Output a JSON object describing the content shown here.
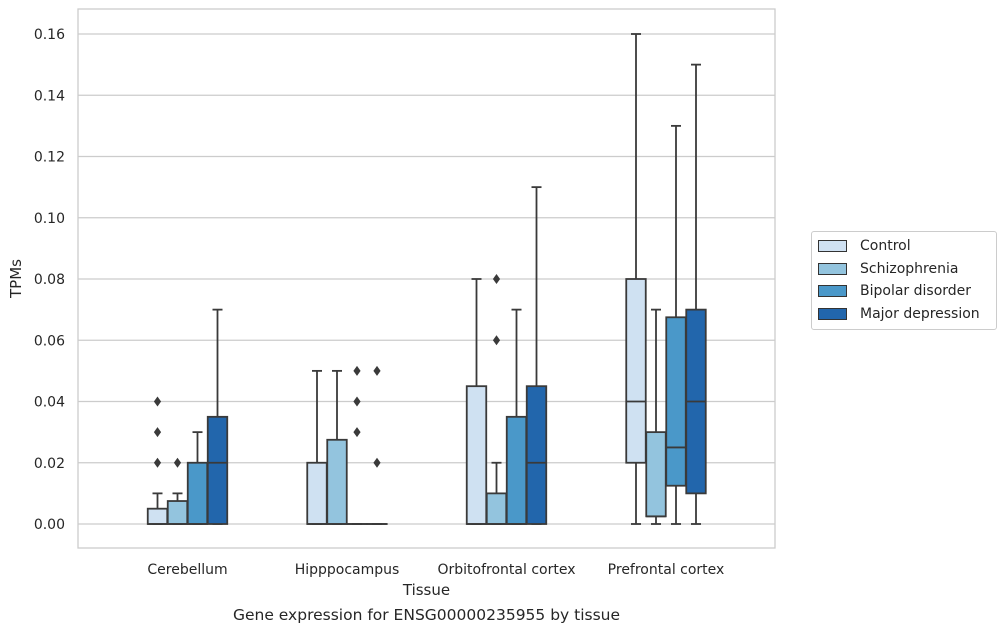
{
  "chart_data": {
    "type": "box",
    "title": "",
    "caption": "Gene expression for ENSG00000235955 by tissue",
    "xlabel": "Tissue",
    "ylabel": "TPMs",
    "ylim": [
      -0.008,
      0.168
    ],
    "yticks": [
      "0.00",
      "0.02",
      "0.04",
      "0.06",
      "0.08",
      "0.10",
      "0.12",
      "0.14",
      "0.16"
    ],
    "ytick_values": [
      0,
      0.02,
      0.04,
      0.06,
      0.08,
      0.1,
      0.12,
      0.14,
      0.16
    ],
    "grid": "horizontal",
    "legend_position": "outside-right",
    "categories": [
      "Cerebellum",
      "Hipppocampus",
      "Orbitofrontal cortex",
      "Prefrontal cortex"
    ],
    "series": [
      {
        "name": "Control",
        "color": "#cfe1f2",
        "boxes": [
          {
            "whislo": 0,
            "q1": 0,
            "med": 0,
            "q3": 0.005,
            "whishi": 0.01,
            "fliers": [
              0.02,
              0.03,
              0.04
            ]
          },
          {
            "whislo": 0,
            "q1": 0,
            "med": 0,
            "q3": 0.02,
            "whishi": 0.05,
            "fliers": []
          },
          {
            "whislo": 0,
            "q1": 0,
            "med": 0,
            "q3": 0.045,
            "whishi": 0.08,
            "fliers": []
          },
          {
            "whislo": 0,
            "q1": 0.02,
            "med": 0.04,
            "q3": 0.08,
            "whishi": 0.16,
            "fliers": []
          }
        ]
      },
      {
        "name": "Schizophrenia",
        "color": "#93c4de",
        "boxes": [
          {
            "whislo": 0,
            "q1": 0,
            "med": 0,
            "q3": 0.0075,
            "whishi": 0.01,
            "fliers": [
              0.02
            ]
          },
          {
            "whislo": 0,
            "q1": 0,
            "med": 0,
            "q3": 0.0275,
            "whishi": 0.05,
            "fliers": []
          },
          {
            "whislo": 0,
            "q1": 0,
            "med": 0,
            "q3": 0.01,
            "whishi": 0.02,
            "fliers": [
              0.06,
              0.08
            ]
          },
          {
            "whislo": 0,
            "q1": 0.0025,
            "med": 0.0025,
            "q3": 0.03,
            "whishi": 0.07,
            "fliers": []
          }
        ]
      },
      {
        "name": "Bipolar disorder",
        "color": "#4a98c9",
        "boxes": [
          {
            "whislo": 0,
            "q1": 0,
            "med": 0,
            "q3": 0.02,
            "whishi": 0.03,
            "fliers": []
          },
          {
            "whislo": 0,
            "q1": 0,
            "med": 0,
            "q3": 0,
            "whishi": 0,
            "fliers": [
              0.03,
              0.04,
              0.05
            ]
          },
          {
            "whislo": 0,
            "q1": 0,
            "med": 0,
            "q3": 0.035,
            "whishi": 0.07,
            "fliers": []
          },
          {
            "whislo": 0,
            "q1": 0.0125,
            "med": 0.025,
            "q3": 0.0675,
            "whishi": 0.13,
            "fliers": []
          }
        ]
      },
      {
        "name": "Major depression",
        "color": "#2266ac",
        "boxes": [
          {
            "whislo": 0,
            "q1": 0,
            "med": 0.02,
            "q3": 0.035,
            "whishi": 0.07,
            "fliers": []
          },
          {
            "whislo": 0,
            "q1": 0,
            "med": 0,
            "q3": 0,
            "whishi": 0,
            "fliers": [
              0.02,
              0.05
            ]
          },
          {
            "whislo": 0,
            "q1": 0,
            "med": 0.02,
            "q3": 0.045,
            "whishi": 0.11,
            "fliers": []
          },
          {
            "whislo": 0,
            "q1": 0.01,
            "med": 0.04,
            "q3": 0.07,
            "whishi": 0.15,
            "fliers": []
          }
        ]
      }
    ]
  }
}
